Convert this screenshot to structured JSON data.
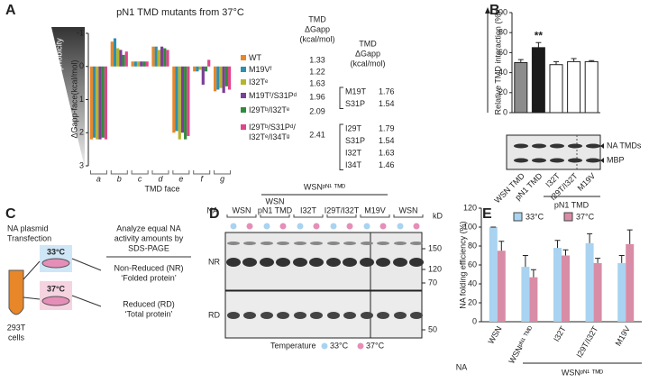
{
  "panel_labels": [
    "A",
    "B",
    "C",
    "D",
    "E"
  ],
  "chart_data": [
    {
      "type": "bar",
      "title": "pN1 TMD mutants from 37°C",
      "side_label": "Hydrophobicity",
      "x_label": "TMD face",
      "y_label": "ΔGapp-face(kcal/mol)",
      "categories": [
        "a",
        "b",
        "c",
        "d",
        "e",
        "f",
        "g"
      ],
      "series": [
        {
          "name": "WT",
          "color": "#e8862a",
          "values": [
            2.2,
            -0.75,
            -0.15,
            -0.6,
            2.0,
            0.15,
            0.75
          ]
        },
        {
          "name": "M19Vᶠ",
          "color": "#2e8fb0",
          "values": [
            2.15,
            -0.85,
            -0.15,
            -0.6,
            1.95,
            0.15,
            0.7
          ]
        },
        {
          "name": "I32Tᵉ",
          "color": "#b5b52a",
          "values": [
            2.2,
            -0.55,
            -0.15,
            -0.5,
            2.2,
            0.1,
            0.65
          ]
        },
        {
          "name": "M19Tᶠ/S31Pᵈ",
          "color": "#7b3f98",
          "values": [
            2.2,
            -0.5,
            -0.15,
            -0.6,
            2.0,
            0.55,
            0.8
          ]
        },
        {
          "name": "I29Tᵇ/I32Tᵉ",
          "color": "#2e8b3e",
          "values": [
            2.15,
            -0.35,
            -0.15,
            -0.55,
            2.2,
            0.15,
            0.6
          ]
        },
        {
          "name": "I29Tᵇ/S31Pᵈ/ I32Tᵉ/I34Tᵍ",
          "color": "#e0458c",
          "values": [
            2.2,
            -0.45,
            -0.15,
            -0.5,
            2.1,
            -0.2,
            0.7
          ]
        }
      ],
      "ylim": [
        3,
        -1
      ],
      "yticks": [
        -1,
        0,
        1,
        2,
        3
      ],
      "legend": "right"
    },
    {
      "type": "bar",
      "y_label": "Relative TMD interaction (%)",
      "categories": [
        "WSN TMD",
        "pN1 TMD",
        "I32T",
        "I29T/I32T",
        "M19V"
      ],
      "values": [
        50,
        65,
        48,
        51,
        51
      ],
      "errors": [
        3,
        5,
        3,
        3,
        1
      ],
      "colors": [
        "#8c8c8c",
        "#1a1a1a",
        "#ffffff",
        "#ffffff",
        "#ffffff"
      ],
      "annotation": "**",
      "group_label": "pN1 TMD",
      "gel_labels": [
        "NA TMDs",
        "MBP"
      ],
      "ylim": [
        0,
        100
      ],
      "yticks": [
        0,
        20,
        40,
        60,
        80,
        100
      ]
    },
    {
      "type": "bar",
      "y_label": "NA folding efficiency (%)",
      "x_label": "NA",
      "categories": [
        "WSN",
        "WSNᵖᴺ¹ ᵀᴹᴰ",
        "I32T",
        "I29T/I32T",
        "M19V"
      ],
      "series": [
        {
          "name": "33°C",
          "color": "#a9d3f0",
          "values": [
            100,
            58,
            78,
            83,
            62
          ],
          "errors": [
            0,
            12,
            8,
            10,
            8
          ]
        },
        {
          "name": "37°C",
          "color": "#d98ca6",
          "values": [
            75,
            47,
            70,
            62,
            82
          ],
          "errors": [
            10,
            8,
            6,
            5,
            15
          ]
        }
      ],
      "group_label": "WSNᵖᴺ¹ ᵀᴹᴰ",
      "ylim": [
        0,
        120
      ],
      "yticks": [
        0,
        20,
        40,
        60,
        80,
        100,
        120
      ],
      "legend": "top"
    }
  ],
  "panel_a_table": {
    "header": [
      "TMD",
      "ΔGapp",
      "(kcal/mol)"
    ],
    "values": [
      1.33,
      1.22,
      1.63,
      1.96,
      2.09,
      2.41
    ],
    "sub_header": [
      "TMD",
      "ΔGapp",
      "(kcal/mol)"
    ],
    "sub_values": [
      [
        {
          "mutation": "M19T",
          "value": 1.76
        },
        {
          "mutation": "S31P",
          "value": 1.54
        }
      ],
      [
        {
          "mutation": "I29T",
          "value": 1.79
        },
        {
          "mutation": "S31P",
          "value": 1.54
        },
        {
          "mutation": "I32T",
          "value": 1.63
        },
        {
          "mutation": "I34T",
          "value": 1.46
        }
      ]
    ]
  },
  "panel_c": {
    "transfection": [
      "NA plasmid",
      "Transfection"
    ],
    "cells": [
      "293T",
      "cells"
    ],
    "temps": [
      "33°C",
      "37°C"
    ],
    "analyze": [
      "Analyze equal NA",
      "activity amounts by",
      "SDS-PAGE"
    ],
    "non_reduced": [
      "Non-Reduced (NR)",
      "‘Folded protein’"
    ],
    "reduced": [
      "Reduced (RD)",
      "‘Total protein’"
    ]
  },
  "panel_d": {
    "na_label": "NA",
    "header": "WSNᵖᴺ¹ ᵀᴹᴰ",
    "lanes": [
      [
        "WSN"
      ],
      [
        "WSN",
        "pN1 TMD"
      ],
      [
        "I32T"
      ],
      [
        "I29T/I32T"
      ],
      [
        "M19V"
      ],
      [
        "WSN"
      ]
    ],
    "rows": [
      "NR",
      "RD"
    ],
    "kd_label": "kD",
    "kd_marks": [
      150,
      120,
      70,
      50
    ],
    "temperature": "Temperature",
    "temps": [
      "33°C",
      "37°C"
    ]
  }
}
